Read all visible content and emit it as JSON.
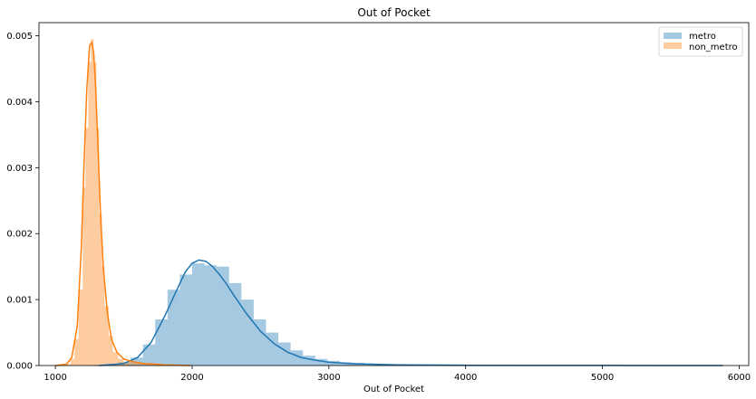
{
  "chart_data": {
    "type": "histogram+kde",
    "title": "Out of Pocket",
    "xlabel": "Out of Pocket",
    "ylabel": "",
    "xlim": [
      880,
      6070
    ],
    "ylim": [
      0,
      0.0052
    ],
    "xticks": [
      1000,
      2000,
      3000,
      4000,
      5000,
      6000
    ],
    "yticks": [
      0,
      0.001,
      0.002,
      0.003,
      0.004,
      0.005
    ],
    "ytick_labels": [
      "0.000",
      "0.001",
      "0.002",
      "0.003",
      "0.004",
      "0.005"
    ],
    "legend_position": "top-right",
    "grid": false,
    "series": [
      {
        "name": "metro",
        "color": "#1f77b4",
        "bins": [
          {
            "x0": 1280,
            "x1": 1370,
            "y": 1e-05
          },
          {
            "x0": 1370,
            "x1": 1460,
            "y": 2e-05
          },
          {
            "x0": 1460,
            "x1": 1550,
            "y": 5e-05
          },
          {
            "x0": 1550,
            "x1": 1640,
            "y": 0.00012
          },
          {
            "x0": 1640,
            "x1": 1730,
            "y": 0.00032
          },
          {
            "x0": 1730,
            "x1": 1820,
            "y": 0.0007
          },
          {
            "x0": 1820,
            "x1": 1910,
            "y": 0.00115
          },
          {
            "x0": 1910,
            "x1": 2000,
            "y": 0.00138
          },
          {
            "x0": 2000,
            "x1": 2090,
            "y": 0.00155
          },
          {
            "x0": 2090,
            "x1": 2180,
            "y": 0.00152
          },
          {
            "x0": 2180,
            "x1": 2270,
            "y": 0.0015
          },
          {
            "x0": 2270,
            "x1": 2360,
            "y": 0.00125
          },
          {
            "x0": 2360,
            "x1": 2450,
            "y": 0.001
          },
          {
            "x0": 2450,
            "x1": 2540,
            "y": 0.0007
          },
          {
            "x0": 2540,
            "x1": 2630,
            "y": 0.0005
          },
          {
            "x0": 2630,
            "x1": 2720,
            "y": 0.00035
          },
          {
            "x0": 2720,
            "x1": 2810,
            "y": 0.00023
          },
          {
            "x0": 2810,
            "x1": 2900,
            "y": 0.00015
          },
          {
            "x0": 2900,
            "x1": 2990,
            "y": 0.0001
          },
          {
            "x0": 2990,
            "x1": 3080,
            "y": 7e-05
          },
          {
            "x0": 3080,
            "x1": 3170,
            "y": 5e-05
          },
          {
            "x0": 3170,
            "x1": 3260,
            "y": 4e-05
          },
          {
            "x0": 3260,
            "x1": 3350,
            "y": 3e-05
          },
          {
            "x0": 3350,
            "x1": 3440,
            "y": 2e-05
          },
          {
            "x0": 3440,
            "x1": 3530,
            "y": 2e-05
          },
          {
            "x0": 3530,
            "x1": 3620,
            "y": 1e-05
          },
          {
            "x0": 3620,
            "x1": 3710,
            "y": 1e-05
          }
        ],
        "kde": {
          "x": [
            1320,
            1500,
            1600,
            1700,
            1800,
            1900,
            1950,
            2000,
            2050,
            2100,
            2150,
            2200,
            2250,
            2300,
            2400,
            2500,
            2600,
            2700,
            2800,
            2900,
            3000,
            3200,
            3500,
            4000,
            4500,
            5000,
            5500,
            5880
          ],
          "y": [
            0.0,
            3e-05,
            0.00012,
            0.00035,
            0.00075,
            0.0012,
            0.00142,
            0.00155,
            0.0016,
            0.00158,
            0.0015,
            0.00138,
            0.00124,
            0.00108,
            0.00078,
            0.00052,
            0.00033,
            0.0002,
            0.00012,
            8e-05,
            5e-05,
            2.5e-05,
            1e-05,
            4e-06,
            2e-06,
            1e-06,
            5e-07,
            0.0
          ]
        }
      },
      {
        "name": "non_metro",
        "color": "#ff7f0e",
        "bins": [
          {
            "x0": 1080,
            "x1": 1110,
            "y": 2e-05
          },
          {
            "x0": 1110,
            "x1": 1140,
            "y": 0.0001
          },
          {
            "x0": 1140,
            "x1": 1170,
            "y": 0.0004
          },
          {
            "x0": 1170,
            "x1": 1200,
            "y": 0.00115
          },
          {
            "x0": 1200,
            "x1": 1220,
            "y": 0.0027
          },
          {
            "x0": 1220,
            "x1": 1240,
            "y": 0.0036
          },
          {
            "x0": 1240,
            "x1": 1260,
            "y": 0.0046
          },
          {
            "x0": 1260,
            "x1": 1280,
            "y": 0.00495
          },
          {
            "x0": 1280,
            "x1": 1300,
            "y": 0.0046
          },
          {
            "x0": 1300,
            "x1": 1320,
            "y": 0.0036
          },
          {
            "x0": 1320,
            "x1": 1340,
            "y": 0.0023
          },
          {
            "x0": 1340,
            "x1": 1360,
            "y": 0.0015
          },
          {
            "x0": 1360,
            "x1": 1390,
            "y": 0.0009
          },
          {
            "x0": 1390,
            "x1": 1420,
            "y": 0.00045
          },
          {
            "x0": 1420,
            "x1": 1460,
            "y": 0.0002
          },
          {
            "x0": 1460,
            "x1": 1500,
            "y": 0.0001
          },
          {
            "x0": 1500,
            "x1": 1560,
            "y": 6e-05
          },
          {
            "x0": 1560,
            "x1": 1650,
            "y": 4e-05
          },
          {
            "x0": 1650,
            "x1": 1800,
            "y": 2e-05
          },
          {
            "x0": 1800,
            "x1": 1990,
            "y": 1e-05
          }
        ],
        "kde": {
          "x": [
            1000,
            1080,
            1120,
            1160,
            1190,
            1210,
            1230,
            1250,
            1265,
            1280,
            1295,
            1310,
            1330,
            1350,
            1380,
            1410,
            1450,
            1500,
            1560,
            1650,
            1800,
            1990
          ],
          "y": [
            0.0,
            2e-05,
            0.00012,
            0.0006,
            0.0018,
            0.0031,
            0.0042,
            0.00485,
            0.0049,
            0.00475,
            0.0042,
            0.0034,
            0.0023,
            0.0015,
            0.0008,
            0.0004,
            0.0002,
            0.0001,
            6e-05,
            3e-05,
            1e-05,
            0.0
          ]
        }
      }
    ]
  }
}
